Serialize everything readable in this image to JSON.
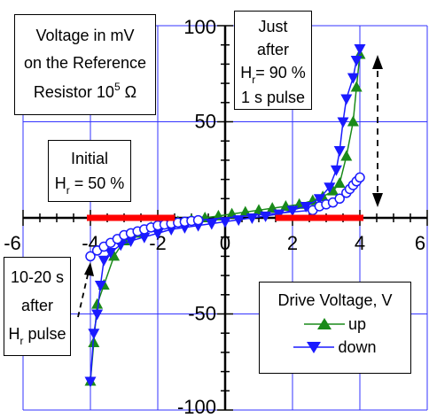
{
  "chart_data": {
    "type": "scatter",
    "xlabel": "",
    "ylabel": "",
    "xlim": [
      -6,
      6
    ],
    "ylim": [
      -100,
      100
    ],
    "xticks": [
      -6,
      -4,
      -2,
      0,
      2,
      4,
      6
    ],
    "yticks": [
      -100,
      -50,
      0,
      50,
      100
    ],
    "x_tick_labels": [
      "-6",
      "-4",
      "-2",
      "0",
      "2",
      "4",
      "6"
    ],
    "y_tick_labels": [
      "-100",
      "-50",
      "0",
      "50",
      "100"
    ],
    "grid": true,
    "legend": {
      "title": "Drive Voltage, V",
      "placement": "bottom-right",
      "entries": [
        "up",
        "down"
      ]
    },
    "colors": {
      "up": "#1a8a1a",
      "down": "#1a1aff",
      "initial": "#ff0000",
      "after": "#1a1aff",
      "grid": "#3333ff"
    },
    "annotations": [
      {
        "id": "voltage_note",
        "line1": "Voltage in mV",
        "line2": "on the Reference",
        "line3_text": "Resistor 10",
        "line3_sup": "5",
        "line3_unit": " Ω"
      },
      {
        "id": "just_after",
        "line1": "Just",
        "line2": "after",
        "line3_h": "H",
        "line3_sub": "r",
        "line3_rest": "= 90 %",
        "line4": "1 s pulse"
      },
      {
        "id": "initial",
        "line1": "Initial",
        "line2_h": "H",
        "line2_sub": "r",
        "line2_rest": " = 50 %"
      },
      {
        "id": "after_pulse",
        "line1": "10-20 s",
        "line2": "after",
        "line3_h": "H",
        "line3_sub": "r",
        "line3_rest": " pulse"
      }
    ],
    "series": [
      {
        "name": "up",
        "marker": "triangle-up",
        "x": [
          -4.0,
          -3.9,
          -3.8,
          -3.6,
          -3.3,
          -3.0,
          -2.6,
          -2.2,
          -1.8,
          -1.4,
          -1.0,
          -0.6,
          -0.2,
          0.2,
          0.6,
          1.0,
          1.4,
          1.8,
          2.2,
          2.6,
          2.9,
          3.2,
          3.4,
          3.6,
          3.8,
          3.9,
          4.0
        ],
        "y": [
          -85,
          -65,
          -45,
          -35,
          -20,
          -12,
          -8,
          -5,
          -3,
          -2,
          -1,
          0,
          1,
          2,
          3,
          4,
          5,
          6,
          7,
          9,
          11,
          14,
          18,
          32,
          50,
          68,
          85
        ]
      },
      {
        "name": "down",
        "marker": "triangle-down",
        "x": [
          4.0,
          3.9,
          3.8,
          3.6,
          3.5,
          3.4,
          3.3,
          3.1,
          2.8,
          2.4,
          2.0,
          1.6,
          1.2,
          0.8,
          0.4,
          0.0,
          -0.4,
          -0.8,
          -1.2,
          -1.6,
          -2.0,
          -2.4,
          -2.8,
          -3.1,
          -3.4,
          -3.6,
          -3.7,
          -3.8,
          -3.9,
          -4.0
        ],
        "y": [
          88,
          82,
          73,
          62,
          50,
          35,
          25,
          16,
          10,
          6,
          4,
          2,
          1,
          0,
          -1,
          -2,
          -3,
          -4,
          -5,
          -6,
          -8,
          -10,
          -12,
          -14,
          -18,
          -22,
          -35,
          -50,
          -60,
          -85
        ]
      },
      {
        "name": "Just after Hr = 90 % 1 s pulse",
        "marker": "circle-open",
        "x": [
          -4.0,
          -3.8,
          -3.6,
          -3.4,
          -3.2,
          -3.0,
          -2.8,
          -2.6,
          -2.4,
          -2.2,
          -2.0,
          -1.8,
          -1.6,
          -1.4,
          -1.2,
          -1.0,
          -0.8,
          2.6,
          2.8,
          3.0,
          3.2,
          3.4,
          3.6,
          3.7,
          3.8,
          3.9,
          4.0
        ],
        "y": [
          -20,
          -17,
          -15,
          -13,
          -11,
          -9,
          -8,
          -7,
          -6,
          -5,
          -4,
          -3.5,
          -3,
          -2.5,
          -2,
          -1.6,
          -1.2,
          4,
          6,
          7,
          8,
          10,
          13,
          15,
          17,
          19,
          21
        ]
      },
      {
        "name": "Initial Hr = 50 %",
        "marker": "square",
        "x": [
          -4.0,
          -3.8,
          -3.6,
          -3.4,
          -3.2,
          -3.0,
          -2.8,
          -2.6,
          -2.4,
          -2.2,
          -2.0,
          -1.8,
          -1.6,
          1.6,
          1.8,
          2.0,
          2.2,
          2.4,
          2.6,
          2.8,
          3.0,
          3.2,
          3.4,
          3.6,
          3.8,
          4.0
        ],
        "y": [
          0,
          0,
          0,
          0,
          0,
          0,
          0,
          0,
          0,
          0,
          0,
          0,
          0,
          0,
          0,
          0,
          0,
          0,
          0,
          0,
          0,
          0,
          0,
          0,
          0,
          0
        ]
      }
    ]
  }
}
